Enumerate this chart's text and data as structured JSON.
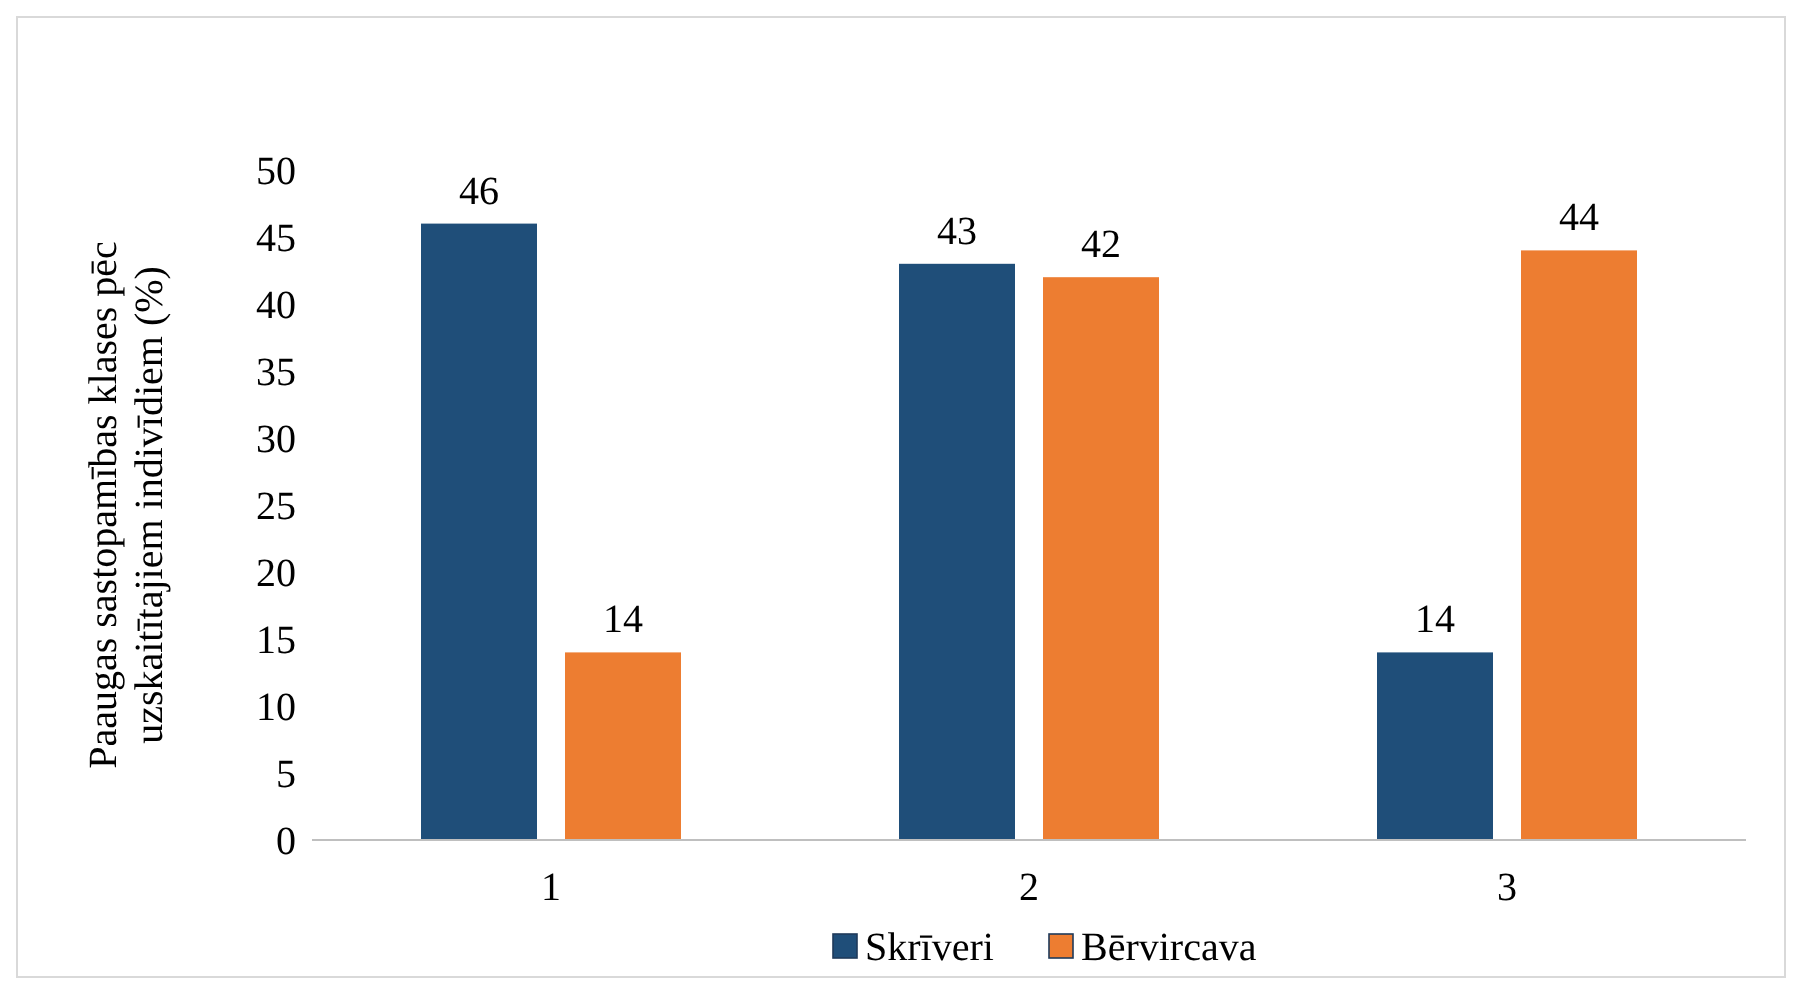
{
  "chart_data": {
    "type": "bar",
    "ylabel": "Paaugas sastopamības klases pēc uzskaitītajiem indivīdiem (%)",
    "categories": [
      "1",
      "2",
      "3"
    ],
    "series": [
      {
        "name": "Skrīveri",
        "color": "#1f4e79",
        "values": [
          46,
          43,
          14
        ]
      },
      {
        "name": "Bērvircava",
        "color": "#ed7d31",
        "values": [
          14,
          42,
          44
        ]
      }
    ],
    "ylim": [
      0,
      50
    ],
    "yticks": [
      0,
      5,
      10,
      15,
      20,
      25,
      30,
      35,
      40,
      45,
      50
    ],
    "data_labels": true,
    "legend": "bottom",
    "grid": false
  }
}
